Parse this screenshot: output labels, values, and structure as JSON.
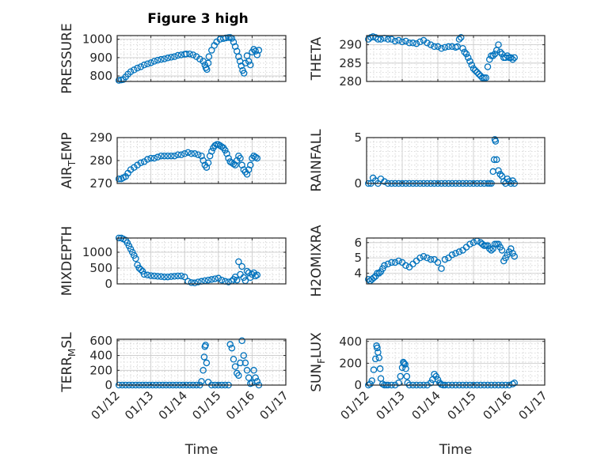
{
  "figure": {
    "title": "Figure 3 high",
    "marker_color": "#0072BD"
  },
  "chart_data": [
    {
      "type": "scatter",
      "title": "Figure 3 high",
      "ylabel": "PRESSURE",
      "ylabel_parts": [
        [
          "PRESSURE",
          "n"
        ]
      ],
      "xlabel": "",
      "ylim": [
        770,
        1020
      ],
      "yticks": [
        800,
        900,
        1000
      ],
      "xlim": [
        0,
        5
      ],
      "xticks": [
        "01/12",
        "01/13",
        "01/14",
        "01/15",
        "01/16",
        "01/17"
      ],
      "grid": true,
      "x": [
        0.05,
        0.12,
        0.18,
        0.25,
        0.32,
        0.4,
        0.5,
        0.6,
        0.7,
        0.8,
        0.9,
        1.0,
        1.1,
        1.2,
        1.3,
        1.4,
        1.5,
        1.6,
        1.7,
        1.8,
        1.9,
        2.0,
        2.05,
        2.15,
        2.25,
        2.35,
        2.45,
        2.55,
        2.6,
        2.63,
        2.66,
        2.7,
        2.72,
        2.8,
        2.88,
        2.95,
        3.05,
        3.15,
        3.22,
        3.3,
        3.35,
        3.4,
        3.45,
        3.5,
        3.55,
        3.6,
        3.64,
        3.68,
        3.72,
        3.76,
        3.8,
        3.85,
        3.9,
        3.95,
        4.0,
        4.05,
        4.1,
        4.15,
        4.2
      ],
      "y": [
        776,
        778,
        780,
        795,
        810,
        823,
        833,
        843,
        850,
        860,
        866,
        872,
        880,
        886,
        890,
        893,
        898,
        902,
        905,
        912,
        915,
        918,
        920,
        920,
        915,
        905,
        892,
        880,
        860,
        845,
        835,
        870,
        905,
        940,
        966,
        986,
        1000,
        1004,
        1007,
        1009,
        1010,
        1005,
        985,
        960,
        935,
        905,
        880,
        855,
        830,
        815,
        870,
        910,
        880,
        860,
        930,
        945,
        935,
        915,
        940
      ]
    },
    {
      "type": "scatter",
      "ylabel": "THETA",
      "ylabel_parts": [
        [
          "THETA",
          "n"
        ]
      ],
      "xlabel": "",
      "ylim": [
        280,
        292.5
      ],
      "yticks": [
        280,
        285,
        290
      ],
      "xlim": [
        0,
        5
      ],
      "xticks": [
        "01/12",
        "01/13",
        "01/14",
        "01/15",
        "01/16",
        "01/17"
      ],
      "grid": true,
      "x": [
        0.05,
        0.12,
        0.18,
        0.25,
        0.32,
        0.4,
        0.5,
        0.6,
        0.7,
        0.8,
        0.9,
        1.0,
        1.1,
        1.2,
        1.3,
        1.4,
        1.5,
        1.6,
        1.7,
        1.8,
        1.9,
        2.0,
        2.1,
        2.2,
        2.3,
        2.4,
        2.5,
        2.55,
        2.6,
        2.65,
        2.7,
        2.75,
        2.8,
        2.85,
        2.9,
        2.95,
        3.0,
        3.05,
        3.1,
        3.15,
        3.2,
        3.25,
        3.3,
        3.35,
        3.4,
        3.45,
        3.5,
        3.55,
        3.6,
        3.65,
        3.7,
        3.75,
        3.8,
        3.85,
        3.9,
        3.95,
        4.0,
        4.05,
        4.1,
        4.15
      ],
      "y": [
        291.5,
        292,
        292.2,
        292,
        291.5,
        291.5,
        291.8,
        291.5,
        291.5,
        291,
        291.2,
        290.8,
        291,
        290.5,
        290.5,
        290.3,
        290.8,
        291.2,
        290.5,
        290,
        289.5,
        289.5,
        289,
        289.3,
        289.5,
        289.5,
        289.3,
        289.5,
        291.5,
        292,
        289,
        288,
        287.5,
        286.5,
        285.5,
        284.5,
        283.5,
        283,
        282.5,
        282,
        281.5,
        281,
        281,
        281,
        284,
        286,
        287,
        287,
        287.5,
        288.5,
        290,
        288,
        287.5,
        286.5,
        286.5,
        287,
        286.5,
        286.5,
        286,
        286.5
      ]
    },
    {
      "type": "scatter",
      "ylabel": "AIR_TEMP",
      "ylabel_parts": [
        [
          "AIR",
          "n"
        ],
        [
          "T",
          "sub"
        ],
        [
          "EMP",
          "n"
        ]
      ],
      "xlabel": "",
      "ylim": [
        270,
        290
      ],
      "yticks": [
        270,
        280,
        290
      ],
      "xlim": [
        0,
        5
      ],
      "xticks": [
        "01/12",
        "01/13",
        "01/14",
        "01/15",
        "01/16",
        "01/17"
      ],
      "grid": true,
      "x": [
        0.05,
        0.12,
        0.18,
        0.25,
        0.32,
        0.4,
        0.5,
        0.6,
        0.7,
        0.8,
        0.9,
        1.0,
        1.1,
        1.2,
        1.3,
        1.4,
        1.5,
        1.6,
        1.7,
        1.8,
        1.9,
        2.0,
        2.1,
        2.2,
        2.3,
        2.4,
        2.5,
        2.55,
        2.6,
        2.65,
        2.7,
        2.75,
        2.8,
        2.85,
        2.9,
        2.95,
        3.0,
        3.05,
        3.1,
        3.15,
        3.2,
        3.25,
        3.3,
        3.35,
        3.4,
        3.45,
        3.5,
        3.55,
        3.6,
        3.65,
        3.7,
        3.75,
        3.8,
        3.85,
        3.9,
        3.95,
        4.0,
        4.05,
        4.1,
        4.15
      ],
      "y": [
        272,
        272,
        272.5,
        273,
        274.5,
        276,
        277,
        278,
        279,
        279.5,
        280.5,
        281,
        281,
        281.5,
        282,
        282,
        282,
        282,
        282,
        282.5,
        282.5,
        283,
        283.5,
        283,
        283,
        282.5,
        282,
        280,
        278,
        277,
        279,
        282,
        284,
        285.5,
        286.5,
        287,
        287,
        286.5,
        286,
        285.5,
        284.5,
        283,
        281,
        279.5,
        279,
        278.5,
        278,
        280,
        282,
        281,
        278,
        276,
        275,
        274,
        276,
        278,
        281,
        282,
        281.5,
        281
      ]
    },
    {
      "type": "scatter",
      "ylabel": "RAINFALL",
      "ylabel_parts": [
        [
          "RAINFALL",
          "n"
        ]
      ],
      "xlabel": "",
      "ylim": [
        0,
        5
      ],
      "yticks": [
        0,
        5
      ],
      "xlim": [
        0,
        5
      ],
      "xticks": [
        "01/12",
        "01/13",
        "01/14",
        "01/15",
        "01/16",
        "01/17"
      ],
      "grid": true,
      "x": [
        0.05,
        0.12,
        0.18,
        0.25,
        0.32,
        0.4,
        0.5,
        0.6,
        0.7,
        0.8,
        0.9,
        1.0,
        1.1,
        1.2,
        1.3,
        1.4,
        1.5,
        1.6,
        1.7,
        1.8,
        1.9,
        2.0,
        2.1,
        2.2,
        2.3,
        2.4,
        2.5,
        2.6,
        2.7,
        2.8,
        2.9,
        3.0,
        3.1,
        3.2,
        3.3,
        3.4,
        3.45,
        3.5,
        3.55,
        3.58,
        3.6,
        3.62,
        3.65,
        3.7,
        3.75,
        3.8,
        3.85,
        3.9,
        3.95,
        4.0,
        4.05,
        4.1,
        4.15
      ],
      "y": [
        0,
        0,
        0.6,
        0.3,
        0,
        0.5,
        0.2,
        0,
        0,
        0,
        0,
        0,
        0,
        0,
        0,
        0,
        0,
        0,
        0,
        0,
        0,
        0,
        0,
        0,
        0,
        0,
        0,
        0,
        0,
        0,
        0,
        0,
        0,
        0,
        0,
        0,
        0,
        0,
        1.3,
        2.6,
        4.8,
        4.6,
        2.6,
        1.4,
        1,
        0.8,
        0.2,
        0,
        0.5,
        0.2,
        0,
        0.3,
        0
      ]
    },
    {
      "type": "scatter",
      "ylabel": "MIXDEPTH",
      "ylabel_parts": [
        [
          "MIXDEPTH",
          "n"
        ]
      ],
      "xlabel": "",
      "ylim": [
        0,
        1450
      ],
      "yticks": [
        0,
        500,
        1000
      ],
      "xlim": [
        0,
        5
      ],
      "xticks": [
        "01/12",
        "01/13",
        "01/14",
        "01/15",
        "01/16",
        "01/17"
      ],
      "grid": true,
      "x": [
        0.05,
        0.12,
        0.18,
        0.25,
        0.3,
        0.35,
        0.4,
        0.45,
        0.5,
        0.55,
        0.6,
        0.65,
        0.7,
        0.75,
        0.8,
        0.9,
        1.0,
        1.1,
        1.2,
        1.3,
        1.4,
        1.5,
        1.6,
        1.7,
        1.8,
        1.9,
        2.0,
        2.1,
        2.2,
        2.3,
        2.4,
        2.5,
        2.6,
        2.7,
        2.8,
        2.9,
        3.0,
        3.1,
        3.2,
        3.3,
        3.4,
        3.45,
        3.5,
        3.55,
        3.6,
        3.65,
        3.7,
        3.75,
        3.8,
        3.85,
        3.9,
        3.95,
        4.0,
        4.05,
        4.1,
        4.15
      ],
      "y": [
        1450,
        1450,
        1420,
        1380,
        1300,
        1200,
        1100,
        1000,
        900,
        800,
        600,
        500,
        450,
        400,
        300,
        280,
        260,
        250,
        240,
        230,
        220,
        220,
        230,
        240,
        250,
        250,
        220,
        80,
        40,
        30,
        60,
        80,
        100,
        120,
        140,
        160,
        180,
        120,
        80,
        60,
        90,
        140,
        220,
        120,
        700,
        300,
        550,
        200,
        100,
        400,
        350,
        200,
        300,
        350,
        250,
        280
      ]
    },
    {
      "type": "scatter",
      "ylabel": "H2OMIXRA",
      "ylabel_parts": [
        [
          "H2OMIXRA",
          "n"
        ]
      ],
      "xlabel": "",
      "ylim": [
        3.3,
        6.3
      ],
      "yticks": [
        4,
        5,
        6
      ],
      "xlim": [
        0,
        5
      ],
      "xticks": [
        "01/12",
        "01/13",
        "01/14",
        "01/15",
        "01/16",
        "01/17"
      ],
      "grid": true,
      "x": [
        0.05,
        0.1,
        0.15,
        0.2,
        0.25,
        0.3,
        0.35,
        0.4,
        0.45,
        0.5,
        0.6,
        0.7,
        0.8,
        0.9,
        1.0,
        1.1,
        1.2,
        1.3,
        1.4,
        1.5,
        1.6,
        1.7,
        1.8,
        1.9,
        2.0,
        2.1,
        2.2,
        2.3,
        2.4,
        2.5,
        2.6,
        2.7,
        2.8,
        2.9,
        3.0,
        3.1,
        3.2,
        3.25,
        3.3,
        3.35,
        3.4,
        3.45,
        3.5,
        3.55,
        3.6,
        3.65,
        3.7,
        3.75,
        3.8,
        3.85,
        3.9,
        3.95,
        4.0,
        4.05,
        4.1,
        4.15
      ],
      "y": [
        3.6,
        3.5,
        3.6,
        3.7,
        3.8,
        4.0,
        4.0,
        4.1,
        4.3,
        4.5,
        4.6,
        4.7,
        4.7,
        4.8,
        4.7,
        4.5,
        4.4,
        4.6,
        4.8,
        5.0,
        5.1,
        5.0,
        4.9,
        4.9,
        4.7,
        4.3,
        4.9,
        5.0,
        5.2,
        5.3,
        5.4,
        5.5,
        5.7,
        5.9,
        6.0,
        6.1,
        6.0,
        5.9,
        5.8,
        5.8,
        5.8,
        5.6,
        5.5,
        5.6,
        5.9,
        5.9,
        5.9,
        5.7,
        5.5,
        4.8,
        5.0,
        5.2,
        5.4,
        5.6,
        5.3,
        5.1
      ]
    },
    {
      "type": "scatter",
      "ylabel": "TERR_MSL",
      "ylabel_parts": [
        [
          "TERR",
          "n"
        ],
        [
          "M",
          "sub"
        ],
        [
          "SL",
          "n"
        ]
      ],
      "xlabel": "Time",
      "ylim": [
        0,
        620
      ],
      "yticks": [
        0,
        200,
        400,
        600
      ],
      "xlim": [
        0,
        5
      ],
      "xticks": [
        "01/12",
        "01/13",
        "01/14",
        "01/15",
        "01/16",
        "01/17"
      ],
      "grid": true,
      "x": [
        0.05,
        0.15,
        0.25,
        0.35,
        0.45,
        0.55,
        0.65,
        0.75,
        0.85,
        0.95,
        1.05,
        1.15,
        1.25,
        1.35,
        1.45,
        1.55,
        1.65,
        1.75,
        1.85,
        1.95,
        2.05,
        2.15,
        2.25,
        2.35,
        2.45,
        2.5,
        2.55,
        2.58,
        2.6,
        2.62,
        2.65,
        2.7,
        2.8,
        2.9,
        3.0,
        3.1,
        3.2,
        3.3,
        3.35,
        3.4,
        3.45,
        3.5,
        3.55,
        3.6,
        3.65,
        3.7,
        3.75,
        3.8,
        3.85,
        3.9,
        3.95,
        4.0,
        4.05,
        4.1,
        4.15,
        4.2
      ],
      "y": [
        0,
        0,
        0,
        0,
        0,
        0,
        0,
        0,
        0,
        0,
        0,
        0,
        0,
        0,
        0,
        0,
        0,
        0,
        0,
        0,
        0,
        0,
        0,
        0,
        0,
        50,
        200,
        380,
        520,
        540,
        300,
        40,
        0,
        0,
        0,
        0,
        0,
        0,
        550,
        500,
        350,
        250,
        160,
        130,
        300,
        600,
        400,
        300,
        200,
        100,
        20,
        30,
        200,
        100,
        50,
        0
      ]
    },
    {
      "type": "scatter",
      "ylabel": "SUN_FLUX",
      "ylabel_parts": [
        [
          "SUN",
          "n"
        ],
        [
          "F",
          "sub"
        ],
        [
          "LUX",
          "n"
        ]
      ],
      "xlabel": "Time",
      "ylim": [
        0,
        420
      ],
      "yticks": [
        0,
        200,
        400
      ],
      "xlim": [
        0,
        5
      ],
      "xticks": [
        "01/12",
        "01/13",
        "01/14",
        "01/15",
        "01/16",
        "01/17"
      ],
      "grid": true,
      "x": [
        0.05,
        0.1,
        0.15,
        0.2,
        0.25,
        0.28,
        0.3,
        0.32,
        0.35,
        0.38,
        0.4,
        0.45,
        0.5,
        0.55,
        0.6,
        0.7,
        0.8,
        0.9,
        0.95,
        1.0,
        1.03,
        1.05,
        1.08,
        1.1,
        1.13,
        1.15,
        1.2,
        1.3,
        1.4,
        1.5,
        1.6,
        1.7,
        1.8,
        1.85,
        1.9,
        1.95,
        2.0,
        2.05,
        2.1,
        2.15,
        2.2,
        2.3,
        2.4,
        2.5,
        2.6,
        2.7,
        2.8,
        2.9,
        3.0,
        3.1,
        3.2,
        3.3,
        3.4,
        3.5,
        3.6,
        3.7,
        3.8,
        3.9,
        4.0,
        4.1,
        4.15
      ],
      "y": [
        0,
        10,
        40,
        140,
        240,
        360,
        340,
        300,
        250,
        150,
        60,
        10,
        0,
        0,
        0,
        0,
        0,
        20,
        80,
        160,
        210,
        200,
        190,
        150,
        80,
        20,
        0,
        0,
        0,
        0,
        0,
        0,
        20,
        50,
        100,
        80,
        50,
        20,
        5,
        0,
        0,
        0,
        0,
        0,
        0,
        0,
        0,
        0,
        0,
        0,
        0,
        0,
        0,
        0,
        0,
        0,
        0,
        0,
        0,
        10,
        20
      ]
    }
  ]
}
